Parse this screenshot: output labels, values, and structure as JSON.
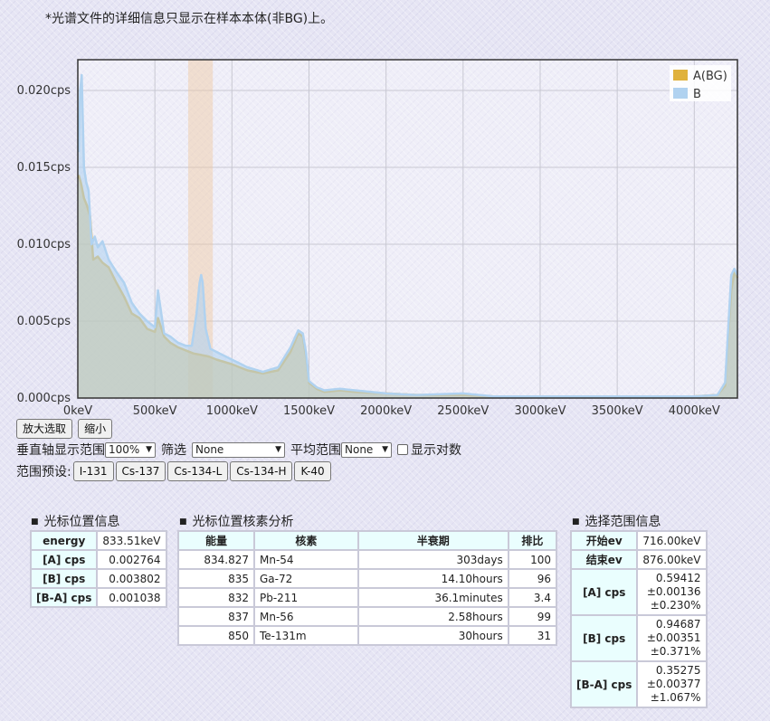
{
  "note": "*光谱文件的详细信息只显示在样本本体(非BG)上。",
  "chart_data": {
    "type": "line",
    "x_unit": "keV",
    "y_unit": "cps",
    "xlim": [
      0,
      4280
    ],
    "ylim": [
      0,
      0.022
    ],
    "x_ticks": [
      "0keV",
      "500keV",
      "1000keV",
      "1500keV",
      "2000keV",
      "2500keV",
      "3000keV",
      "3500keV",
      "4000keV"
    ],
    "y_ticks": [
      "0.000cps",
      "0.005cps",
      "0.010cps",
      "0.015cps",
      "0.020cps"
    ],
    "legend_position": "top-right",
    "grid": true,
    "selected_range": [
      716,
      876
    ],
    "series": [
      {
        "name": "A(BG)",
        "color": "#e0b23c",
        "x": [
          5,
          20,
          40,
          60,
          80,
          100,
          130,
          160,
          200,
          250,
          300,
          350,
          400,
          450,
          500,
          520,
          560,
          600,
          650,
          700,
          750,
          800,
          850,
          900,
          1000,
          1100,
          1200,
          1300,
          1380,
          1430,
          1460,
          1480,
          1500,
          1550,
          1600,
          1700,
          1800,
          2000,
          2200,
          2500,
          2700,
          3000,
          3500,
          4000,
          4150,
          4200,
          4220,
          4240,
          4260,
          4280
        ],
        "values": [
          0.0145,
          0.014,
          0.013,
          0.0125,
          0.0118,
          0.009,
          0.0092,
          0.0088,
          0.0085,
          0.0075,
          0.0066,
          0.0055,
          0.0052,
          0.0045,
          0.0043,
          0.0052,
          0.004,
          0.0036,
          0.0033,
          0.0031,
          0.0029,
          0.0028,
          0.0027,
          0.0025,
          0.0022,
          0.0018,
          0.0016,
          0.0018,
          0.003,
          0.0042,
          0.004,
          0.0028,
          0.001,
          0.0006,
          0.0004,
          0.0005,
          0.0004,
          0.0003,
          0.0002,
          0.0002,
          0.0001,
          0.0001,
          0.0001,
          0.0001,
          0.0002,
          0.0008,
          0.004,
          0.007,
          0.0082,
          0.0078
        ]
      },
      {
        "name": "B",
        "color": "#b0d2f0",
        "x": [
          5,
          15,
          25,
          40,
          55,
          70,
          90,
          110,
          130,
          160,
          200,
          250,
          300,
          350,
          400,
          450,
          500,
          520,
          560,
          600,
          650,
          700,
          740,
          770,
          790,
          800,
          810,
          830,
          860,
          900,
          1000,
          1100,
          1200,
          1300,
          1380,
          1430,
          1460,
          1480,
          1500,
          1550,
          1600,
          1700,
          1800,
          2000,
          2200,
          2500,
          2700,
          3000,
          3500,
          4000,
          4150,
          4200,
          4220,
          4240,
          4260,
          4280
        ],
        "values": [
          0.016,
          0.02,
          0.021,
          0.015,
          0.014,
          0.0135,
          0.01,
          0.0105,
          0.0098,
          0.0102,
          0.009,
          0.0082,
          0.0075,
          0.0062,
          0.0055,
          0.005,
          0.0046,
          0.007,
          0.0042,
          0.004,
          0.0036,
          0.0034,
          0.0034,
          0.0055,
          0.0075,
          0.008,
          0.0075,
          0.0045,
          0.0032,
          0.003,
          0.0025,
          0.002,
          0.0017,
          0.002,
          0.0033,
          0.0044,
          0.0042,
          0.003,
          0.0011,
          0.0007,
          0.0005,
          0.0006,
          0.0005,
          0.0003,
          0.0002,
          0.0003,
          0.0001,
          0.0001,
          0.0001,
          0.0001,
          0.0002,
          0.001,
          0.0045,
          0.008,
          0.0084,
          0.008
        ]
      }
    ]
  },
  "controls": {
    "zoom_in": "放大选取",
    "zoom_out": "缩小",
    "vaxis_label": "垂直轴显示范围",
    "vaxis_value": "100%",
    "filter_label": "筛选",
    "filter_value": "None",
    "avg_label": "平均范围",
    "avg_value": "None",
    "log_label": "显示对数",
    "presets_label": "范围预设:",
    "presets": [
      "I-131",
      "Cs-137",
      "Cs-134-L",
      "Cs-134-H",
      "K-40"
    ]
  },
  "cursor_info": {
    "title": "光标位置信息",
    "rows": [
      {
        "label": "energy",
        "value": "833.51keV"
      },
      {
        "label": "[A] cps",
        "value": "0.002764"
      },
      {
        "label": "[B] cps",
        "value": "0.003802"
      },
      {
        "label": "[B-A] cps",
        "value": "0.001038"
      }
    ]
  },
  "nuclide": {
    "title": "光标位置核素分析",
    "headers": [
      "能量",
      "核素",
      "半衰期",
      "排比"
    ],
    "rows": [
      [
        "834.827",
        "Mn-54",
        "303days",
        "100"
      ],
      [
        "835",
        "Ga-72",
        "14.10hours",
        "96"
      ],
      [
        "832",
        "Pb-211",
        "36.1minutes",
        "3.4"
      ],
      [
        "837",
        "Mn-56",
        "2.58hours",
        "99"
      ],
      [
        "850",
        "Te-131m",
        "30hours",
        "31"
      ]
    ]
  },
  "range_info": {
    "title": "选择范围信息",
    "start_label": "开始ev",
    "start_value": "716.00keV",
    "end_label": "结束ev",
    "end_value": "876.00keV",
    "a_label": "[A] cps",
    "a_lines": [
      "0.59412",
      "±0.00136",
      "±0.230%"
    ],
    "b_label": "[B] cps",
    "b_lines": [
      "0.94687",
      "±0.00351",
      "±0.371%"
    ],
    "ba_label": "[B-A] cps",
    "ba_lines": [
      "0.35275",
      "±0.00377",
      "±1.067%"
    ]
  }
}
